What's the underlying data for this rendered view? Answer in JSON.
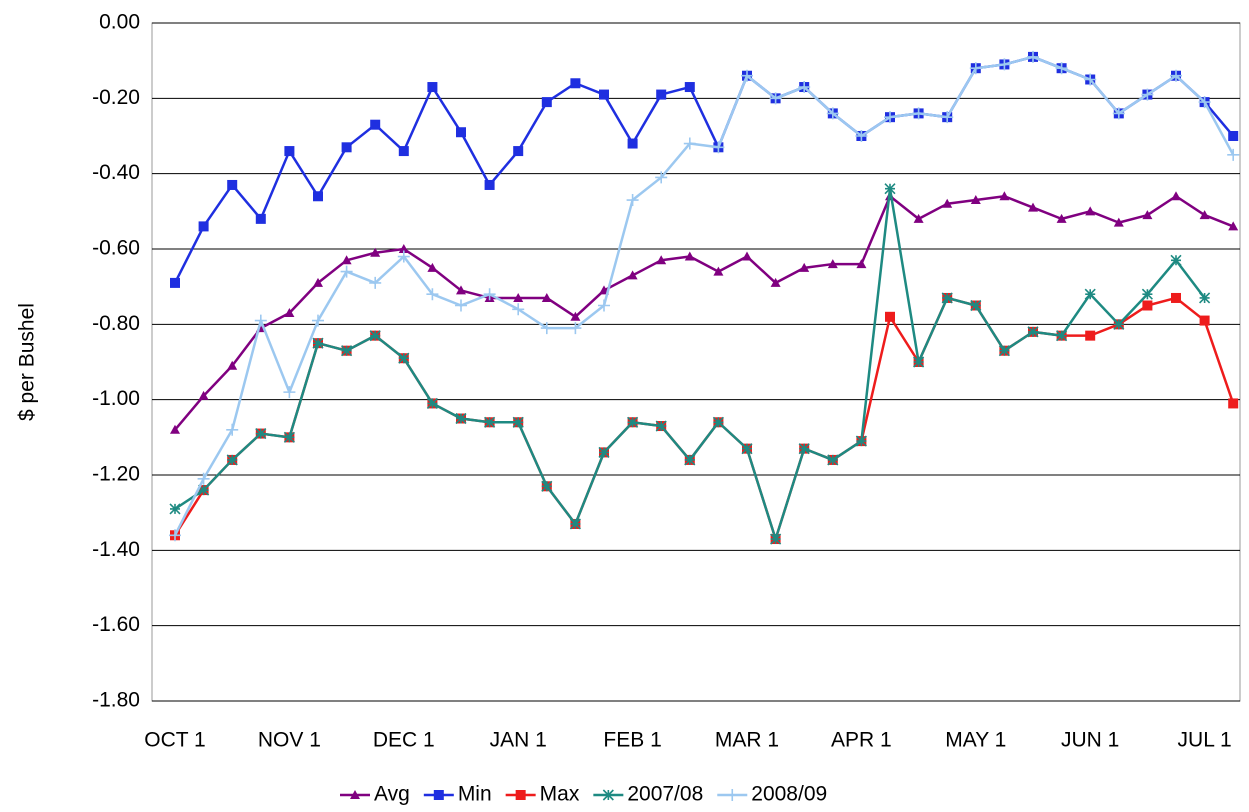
{
  "chart_data": {
    "type": "line",
    "y_label": "$ per Bushel",
    "categories": [
      "OCT 1",
      null,
      null,
      null,
      "NOV 1",
      null,
      null,
      null,
      "DEC 1",
      null,
      null,
      null,
      "JAN 1",
      null,
      null,
      null,
      "FEB 1",
      null,
      null,
      null,
      "MAR 1",
      null,
      null,
      null,
      "APR 1",
      null,
      null,
      null,
      "MAY 1",
      null,
      null,
      null,
      "JUN 1",
      null,
      null,
      null,
      "JUL 1",
      null
    ],
    "ylim": [
      -1.8,
      0
    ],
    "yticks": [
      {
        "value": -1.8,
        "label": "-1.80"
      },
      {
        "value": -1.6,
        "label": "-1.60"
      },
      {
        "value": -1.4,
        "label": "-1.40"
      },
      {
        "value": -1.2,
        "label": "-1.20"
      },
      {
        "value": -1.0,
        "label": "-1.00"
      },
      {
        "value": -0.8,
        "label": "-0.80"
      },
      {
        "value": -0.6,
        "label": "-0.60"
      },
      {
        "value": -0.4,
        "label": "-0.40"
      },
      {
        "value": -0.2,
        "label": "-0.20"
      },
      {
        "value": 0,
        "label": "0.00"
      }
    ],
    "grid": true,
    "legend": "bottom",
    "series": [
      {
        "name": "Avg",
        "color": "#800080",
        "marker": "triangle",
        "values": [
          -1.08,
          -0.99,
          -0.91,
          -0.81,
          -0.77,
          -0.69,
          -0.63,
          -0.61,
          -0.6,
          -0.65,
          -0.71,
          -0.73,
          -0.73,
          -0.73,
          -0.78,
          -0.71,
          -0.67,
          -0.63,
          -0.62,
          -0.66,
          -0.62,
          -0.69,
          -0.65,
          -0.64,
          -0.64,
          -0.46,
          -0.52,
          -0.48,
          -0.47,
          -0.46,
          -0.49,
          -0.52,
          -0.5,
          -0.53,
          -0.51,
          -0.46,
          -0.51,
          -0.54
        ]
      },
      {
        "name": "Min",
        "color": "#1f2fe0",
        "marker": "square",
        "values": [
          -0.69,
          -0.54,
          -0.43,
          -0.52,
          -0.34,
          -0.46,
          -0.33,
          -0.27,
          -0.34,
          -0.17,
          -0.29,
          -0.43,
          -0.34,
          -0.21,
          -0.16,
          -0.19,
          -0.32,
          -0.19,
          -0.17,
          -0.33,
          -0.14,
          -0.2,
          -0.17,
          -0.24,
          -0.3,
          -0.25,
          -0.24,
          -0.25,
          -0.12,
          -0.11,
          -0.09,
          -0.12,
          -0.15,
          -0.24,
          -0.19,
          -0.14,
          -0.21,
          -0.3
        ]
      },
      {
        "name": "Max",
        "color": "#ee1c1c",
        "marker": "square",
        "values": [
          -1.36,
          -1.24,
          -1.16,
          -1.09,
          -1.1,
          -0.85,
          -0.87,
          -0.83,
          -0.89,
          -1.01,
          -1.05,
          -1.06,
          -1.06,
          -1.23,
          -1.33,
          -1.14,
          -1.06,
          -1.07,
          -1.16,
          -1.06,
          -1.13,
          -1.37,
          -1.13,
          -1.16,
          -1.11,
          -0.78,
          -0.9,
          -0.73,
          -0.75,
          -0.87,
          -0.82,
          -0.83,
          -0.83,
          -0.8,
          -0.75,
          -0.73,
          -0.79,
          -1.01
        ]
      },
      {
        "name": "2007/08",
        "color": "#1e8a82",
        "marker": "asterisk",
        "values": [
          -1.29,
          -1.24,
          -1.16,
          -1.09,
          -1.1,
          -0.85,
          -0.87,
          -0.83,
          -0.89,
          -1.01,
          -1.05,
          -1.06,
          -1.06,
          -1.23,
          -1.33,
          -1.14,
          -1.06,
          -1.07,
          -1.16,
          -1.06,
          -1.13,
          -1.37,
          -1.13,
          -1.16,
          -1.11,
          -0.44,
          -0.9,
          -0.73,
          -0.75,
          -0.87,
          -0.82,
          -0.83,
          -0.72,
          -0.8,
          -0.72,
          -0.63,
          -0.73,
          null
        ]
      },
      {
        "name": "2008/09",
        "color": "#9cc8f0",
        "marker": "plus",
        "values": [
          -1.36,
          -1.21,
          -1.08,
          -0.79,
          -0.98,
          -0.79,
          -0.66,
          -0.69,
          -0.62,
          -0.72,
          -0.75,
          -0.72,
          -0.76,
          -0.81,
          -0.81,
          -0.75,
          -0.47,
          -0.41,
          -0.32,
          -0.33,
          -0.14,
          -0.2,
          -0.17,
          -0.24,
          -0.3,
          -0.25,
          -0.24,
          -0.25,
          -0.12,
          -0.11,
          -0.09,
          -0.12,
          -0.15,
          -0.24,
          -0.19,
          -0.14,
          -0.21,
          -0.35
        ]
      }
    ]
  }
}
